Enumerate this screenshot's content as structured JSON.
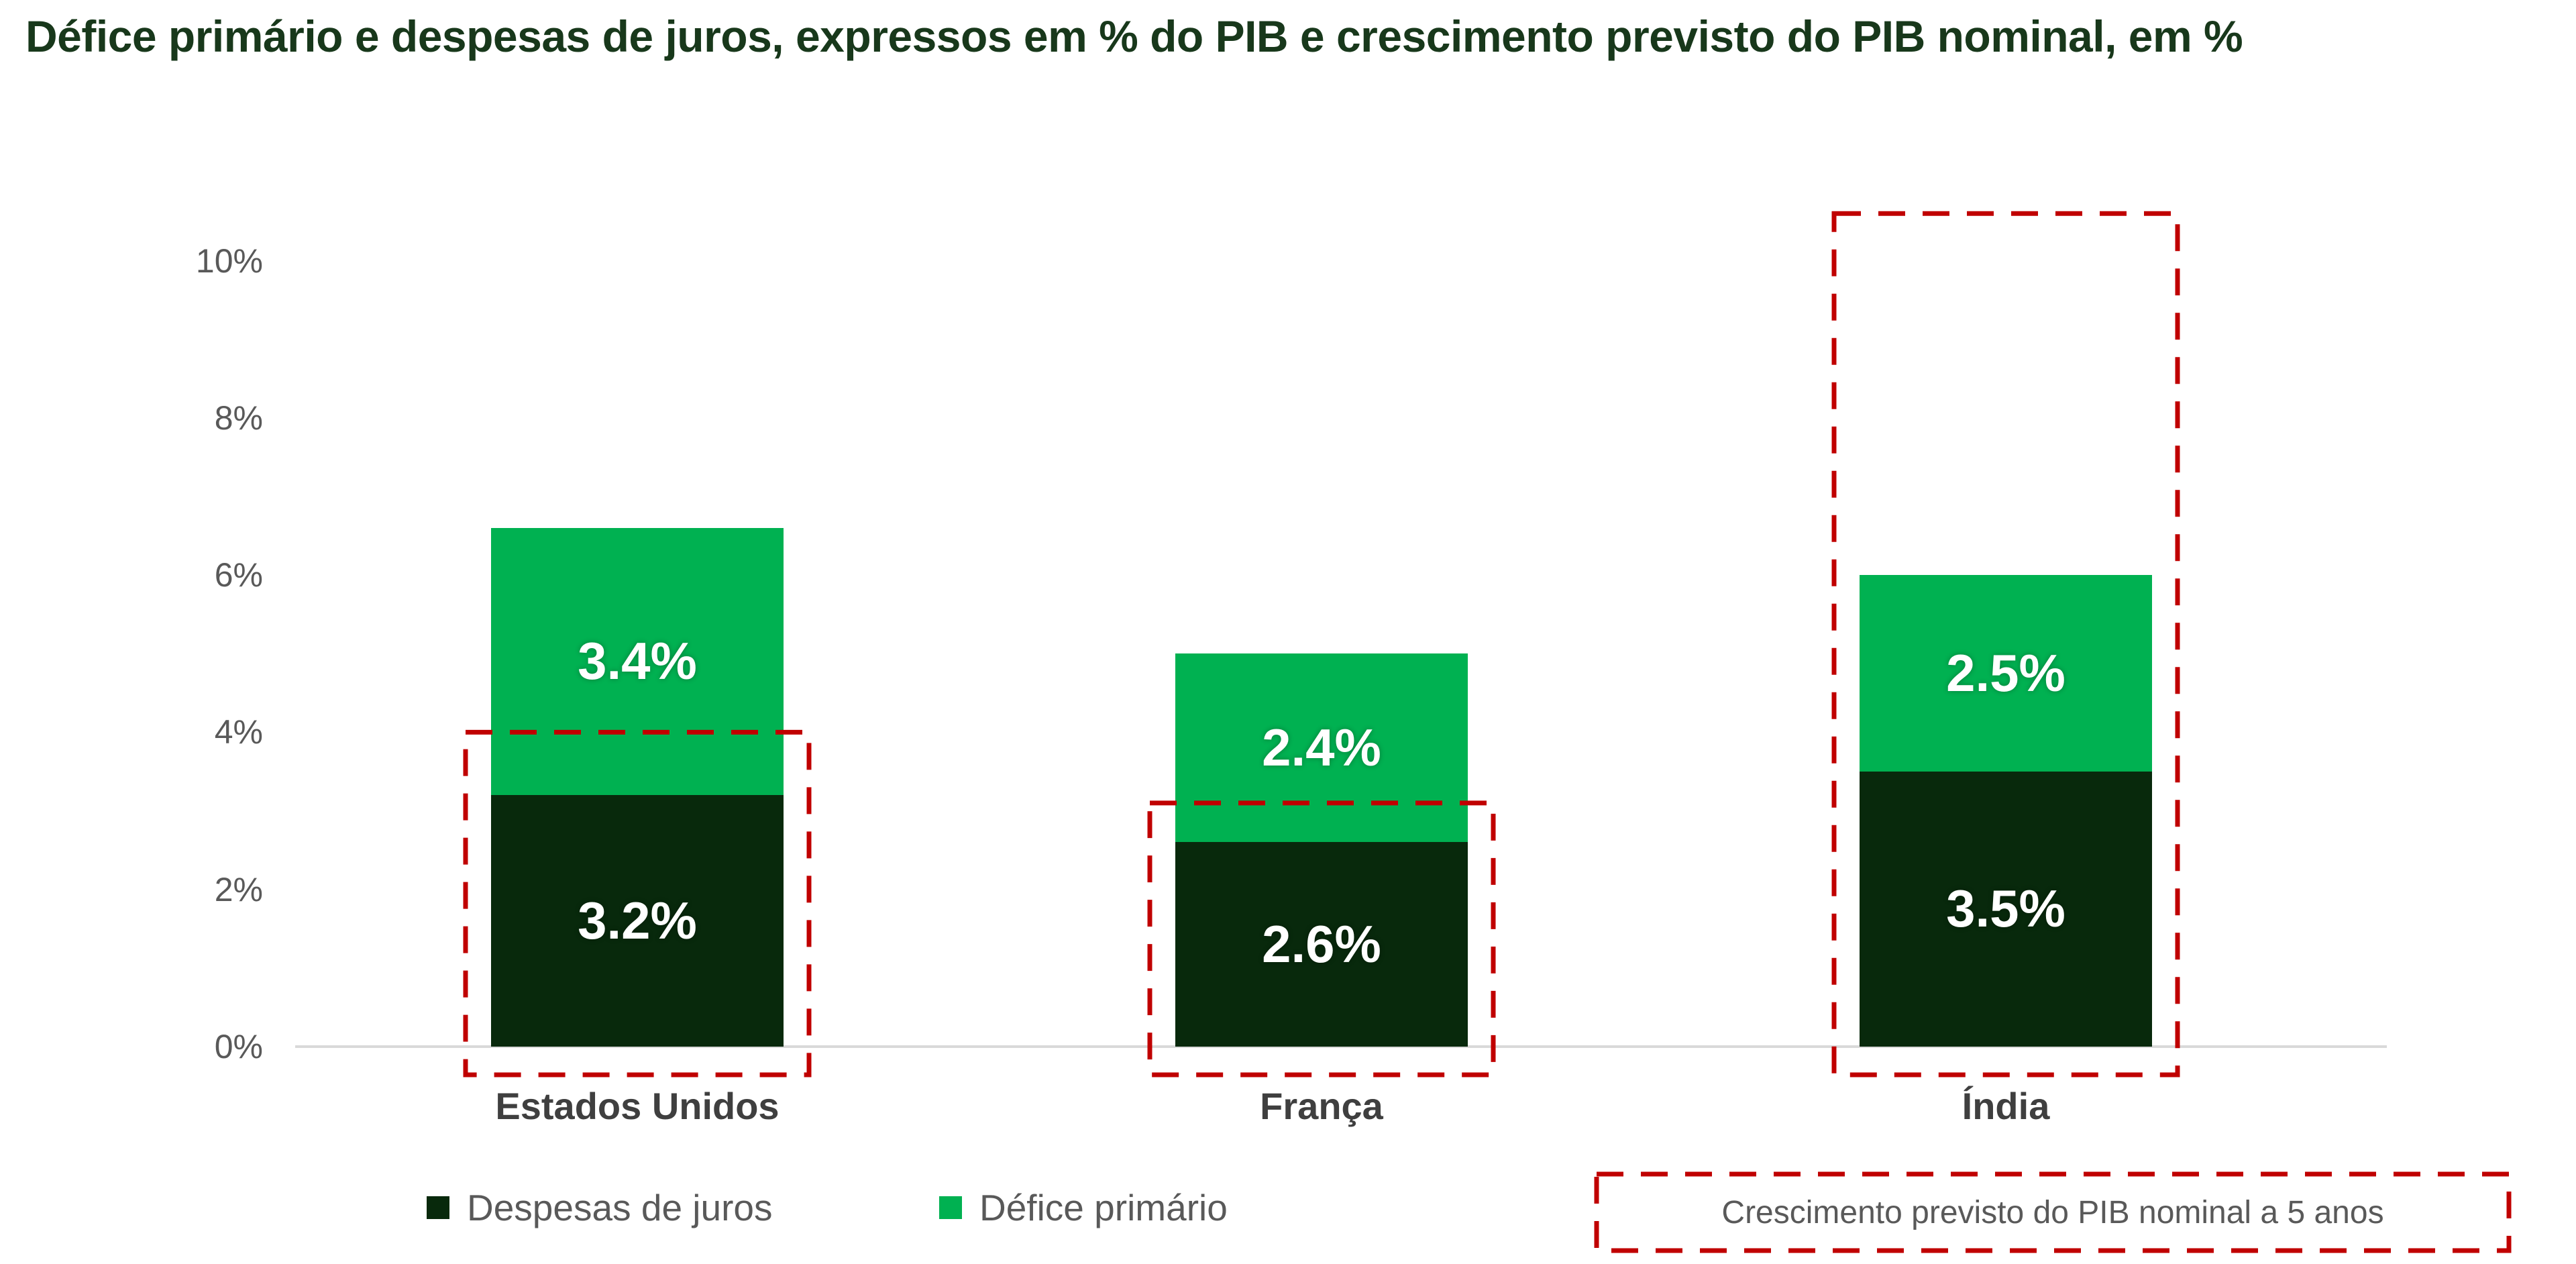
{
  "title": "Défice primário e despesas de juros, expressos em % do PIB e crescimento previsto do PIB nominal, em %",
  "colors": {
    "title_green": "#18381b",
    "dark_green": "#08290c",
    "light_green": "#00b151",
    "overlay_red": "#c00000",
    "axis_line_gray": "#d9d9d9",
    "tick_text_gray": "#595959",
    "category_text_gray": "#3f3f3f",
    "legend_text_gray": "#595959",
    "bar_label_white": "#ffffff"
  },
  "chart_data": {
    "type": "bar",
    "stacked": true,
    "title": "Défice primário e despesas de juros, expressos em % do PIB e crescimento previsto do PIB nominal, em %",
    "categories": [
      "Estados Unidos",
      "França",
      "Índia"
    ],
    "series": [
      {
        "name": "Despesas de juros",
        "values": [
          3.2,
          2.6,
          3.5
        ],
        "labels": [
          "3.2%",
          "2.6%",
          "3.5%"
        ],
        "color": "#08290c"
      },
      {
        "name": "Défice primário",
        "values": [
          3.4,
          2.4,
          2.5
        ],
        "labels": [
          "3.4%",
          "2.4%",
          "2.5%"
        ],
        "color": "#00b151"
      }
    ],
    "stack_totals": [
      6.6,
      5.0,
      6.0
    ],
    "overlay": {
      "name": "Crescimento previsto do PIB nominal a 5 anos",
      "style": "red-dashed-box",
      "values": [
        4.0,
        3.1,
        10.6
      ],
      "color": "#c00000"
    },
    "ylim": [
      0,
      10
    ],
    "yticks_values": [
      0,
      2,
      4,
      6,
      8,
      10
    ],
    "yticks_labels": [
      "0%",
      "2%",
      "4%",
      "6%",
      "8%",
      "10%"
    ],
    "xlabel": "",
    "ylabel": "",
    "grid": false,
    "legend_position": "bottom"
  },
  "legend": {
    "items": [
      {
        "label": "Despesas de juros",
        "swatch": "dark-green-square"
      },
      {
        "label": "Défice primário",
        "swatch": "light-green-square"
      },
      {
        "label": "Crescimento previsto do PIB nominal a 5 anos",
        "swatch": "red-dashed-box"
      }
    ]
  }
}
